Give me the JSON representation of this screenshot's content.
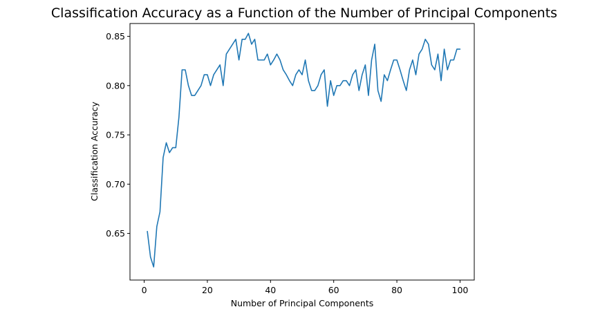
{
  "chart_data": {
    "type": "line",
    "title": "Classification Accuracy as a Function of the Number of Principal Components",
    "xlabel": "Number of Principal Components",
    "ylabel": "Classification Accuracy",
    "xlim": [
      -4.5,
      104.5
    ],
    "ylim": [
      0.6027,
      0.863
    ],
    "xticks": [
      0,
      20,
      40,
      60,
      80,
      100
    ],
    "xtick_labels": [
      "0",
      "20",
      "40",
      "60",
      "80",
      "100"
    ],
    "yticks": [
      0.65,
      0.7,
      0.75,
      0.8,
      0.85
    ],
    "ytick_labels": [
      "0.65",
      "0.70",
      "0.75",
      "0.80",
      "0.85"
    ],
    "grid": false,
    "legend": "none",
    "series": [
      {
        "color": "#1f77b4",
        "x": [
          1,
          2,
          3,
          4,
          5,
          6,
          7,
          8,
          9,
          10,
          11,
          12,
          13,
          14,
          15,
          16,
          17,
          18,
          19,
          20,
          21,
          22,
          23,
          24,
          25,
          26,
          27,
          28,
          29,
          30,
          31,
          32,
          33,
          34,
          35,
          36,
          37,
          38,
          39,
          40,
          41,
          42,
          43,
          44,
          45,
          46,
          47,
          48,
          49,
          50,
          51,
          52,
          53,
          54,
          55,
          56,
          57,
          58,
          59,
          60,
          61,
          62,
          63,
          64,
          65,
          66,
          67,
          68,
          69,
          70,
          71,
          72,
          73,
          74,
          75,
          76,
          77,
          78,
          79,
          80,
          81,
          82,
          83,
          84,
          85,
          86,
          87,
          88,
          89,
          90,
          91,
          92,
          93,
          94,
          95,
          96,
          97,
          98,
          99,
          100
        ],
        "y": [
          0.652,
          0.626,
          0.616,
          0.657,
          0.672,
          0.727,
          0.742,
          0.732,
          0.737,
          0.737,
          0.768,
          0.816,
          0.816,
          0.8,
          0.79,
          0.79,
          0.795,
          0.8,
          0.811,
          0.811,
          0.8,
          0.811,
          0.816,
          0.821,
          0.8,
          0.832,
          0.837,
          0.842,
          0.847,
          0.826,
          0.847,
          0.847,
          0.853,
          0.842,
          0.847,
          0.826,
          0.826,
          0.826,
          0.832,
          0.821,
          0.826,
          0.832,
          0.826,
          0.816,
          0.811,
          0.805,
          0.8,
          0.811,
          0.816,
          0.811,
          0.826,
          0.805,
          0.795,
          0.795,
          0.8,
          0.811,
          0.816,
          0.779,
          0.805,
          0.79,
          0.8,
          0.8,
          0.805,
          0.805,
          0.8,
          0.811,
          0.816,
          0.795,
          0.811,
          0.821,
          0.79,
          0.826,
          0.842,
          0.795,
          0.784,
          0.811,
          0.805,
          0.816,
          0.826,
          0.826,
          0.816,
          0.805,
          0.795,
          0.816,
          0.826,
          0.811,
          0.832,
          0.837,
          0.847,
          0.842,
          0.821,
          0.816,
          0.832,
          0.805,
          0.837,
          0.816,
          0.826,
          0.826,
          0.837,
          0.837
        ]
      }
    ]
  }
}
